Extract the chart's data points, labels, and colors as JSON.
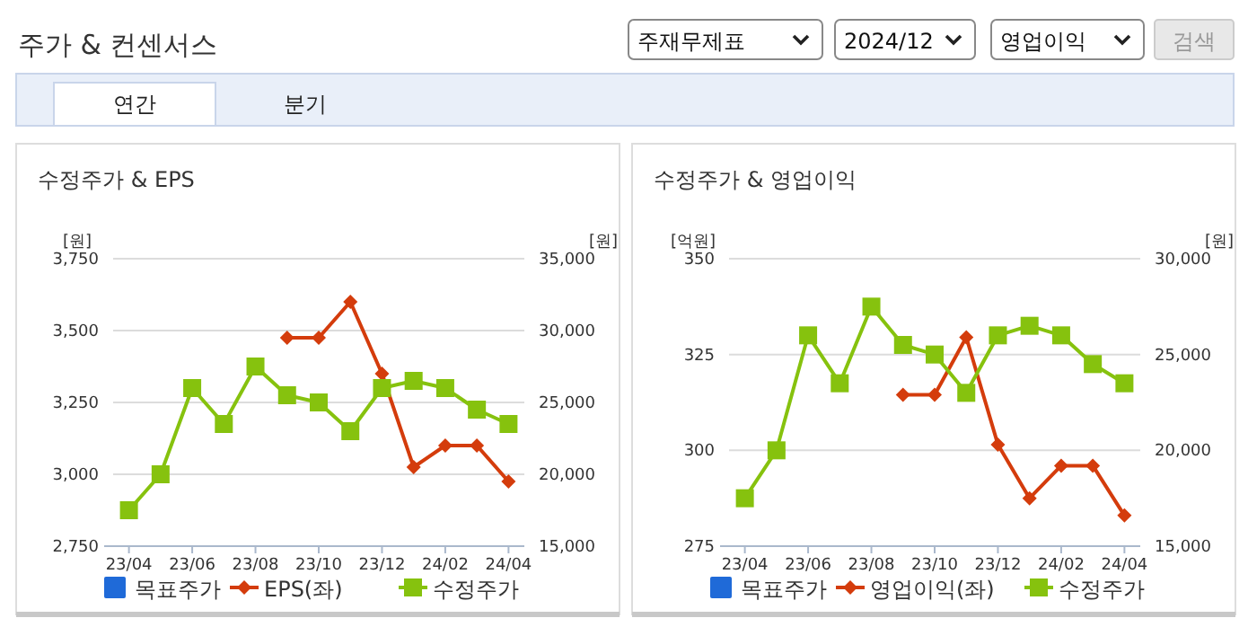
{
  "chart_data": [
    {
      "type": "other",
      "title": "주가 & 컨센서스",
      "annotations": [
        "주재무제표",
        "2024/12",
        "영업이익",
        "검색",
        "연간",
        "분기"
      ]
    },
    {
      "type": "line",
      "title": "수정주가 & EPS",
      "ylabel": "[원]",
      "y2label": "[원]",
      "categories": [
        "23/04",
        null,
        "23/06",
        null,
        "23/08",
        null,
        "23/10",
        null,
        "23/12",
        null,
        "24/02",
        null,
        "24/04"
      ],
      "ylim": [
        2750,
        3750
      ],
      "yticks": [
        {
          "value": 2750,
          "label": "2,750"
        },
        {
          "value": 3000,
          "label": "3,000"
        },
        {
          "value": 3250,
          "label": "3,250"
        },
        {
          "value": 3500,
          "label": "3,500"
        },
        {
          "value": 3750,
          "label": "3,750"
        }
      ],
      "y2lim": [
        15000,
        35000
      ],
      "y2ticks": [
        {
          "value": 15000,
          "label": "15,000"
        },
        {
          "value": 20000,
          "label": "20,000"
        },
        {
          "value": 25000,
          "label": "25,000"
        },
        {
          "value": 30000,
          "label": "30,000"
        },
        {
          "value": 35000,
          "label": "35,000"
        }
      ],
      "grid": "y",
      "legend": "bottom",
      "series": [
        {
          "name": "목표주가",
          "type": "bar",
          "color": "#1f6ad8",
          "values": [
            null,
            null,
            null,
            null,
            null,
            null,
            null,
            null,
            null,
            null,
            null,
            null,
            null
          ]
        },
        {
          "name": "EPS(좌)",
          "type": "line",
          "marker": "diamond",
          "color": "#d43c0c",
          "values": [
            null,
            null,
            null,
            null,
            null,
            3475,
            3475,
            3600,
            3350,
            3025,
            3100,
            3100,
            2975
          ]
        },
        {
          "name": "수정주가",
          "type": "line",
          "marker": "square",
          "axis": "y2",
          "color": "#86c20e",
          "values": [
            17500,
            20000,
            26000,
            23500,
            27500,
            25500,
            25000,
            23000,
            26000,
            26500,
            26000,
            24500,
            23500
          ]
        }
      ]
    },
    {
      "type": "line",
      "title": "수정주가 & 영업이익",
      "ylabel": "[억원]",
      "y2label": "[원]",
      "categories": [
        "23/04",
        null,
        "23/06",
        null,
        "23/08",
        null,
        "23/10",
        null,
        "23/12",
        null,
        "24/02",
        null,
        "24/04"
      ],
      "ylim": [
        275,
        350
      ],
      "yticks": [
        275,
        300,
        325,
        350
      ],
      "y2lim": [
        15000,
        30000
      ],
      "y2ticks": [
        {
          "value": 15000,
          "label": "15,000"
        },
        {
          "value": 20000,
          "label": "20,000"
        },
        {
          "value": 25000,
          "label": "25,000"
        },
        {
          "value": 30000,
          "label": "30,000"
        }
      ],
      "grid": "y",
      "legend": "bottom",
      "series": [
        {
          "name": "목표주가",
          "type": "bar",
          "color": "#1f6ad8",
          "values": [
            null,
            null,
            null,
            null,
            null,
            null,
            null,
            null,
            null,
            null,
            null,
            null,
            null
          ]
        },
        {
          "name": "영업이익(좌)",
          "type": "line",
          "marker": "diamond",
          "color": "#d43c0c",
          "values": [
            null,
            null,
            null,
            null,
            null,
            314.5,
            314.5,
            329.5,
            301.5,
            287.5,
            296,
            296,
            283
          ]
        },
        {
          "name": "수정주가",
          "type": "line",
          "marker": "square",
          "axis": "y2",
          "color": "#86c20e",
          "values": [
            17500,
            20000,
            26000,
            23500,
            27500,
            25500,
            25000,
            23000,
            26000,
            26500,
            26000,
            24500,
            23500
          ]
        }
      ]
    }
  ]
}
